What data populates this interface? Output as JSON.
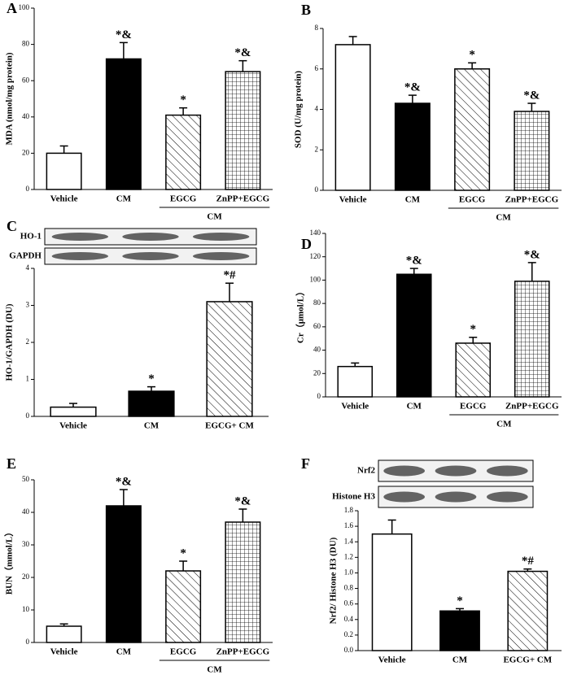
{
  "chart_data": [
    {
      "type": "bar",
      "panel": "A",
      "ylabel": "MDA (nmol/mg protein)",
      "categories": [
        "Vehicle",
        "CM",
        "EGCG",
        "ZnPP+EGCG"
      ],
      "values": [
        20,
        72,
        41,
        65
      ],
      "errors": [
        4,
        9,
        4,
        6
      ],
      "annotations": [
        null,
        "*&",
        "*",
        "*&"
      ],
      "fills": [
        "white",
        "black",
        "hatch",
        "grid"
      ],
      "group": "CM",
      "grouped": [
        false,
        false,
        true,
        true
      ],
      "ylim": [
        0,
        100
      ],
      "yticks": [
        0,
        20,
        40,
        60,
        80,
        100
      ]
    },
    {
      "type": "bar",
      "panel": "B",
      "ylabel": "SOD (U/mg protein)",
      "categories": [
        "Vehicle",
        "CM",
        "EGCG",
        "ZnPP+EGCG"
      ],
      "values": [
        7.2,
        4.3,
        6.0,
        3.9
      ],
      "errors": [
        0.4,
        0.4,
        0.3,
        0.4
      ],
      "annotations": [
        null,
        "*&",
        "*",
        "*&"
      ],
      "fills": [
        "white",
        "black",
        "hatch",
        "grid"
      ],
      "group": "CM",
      "grouped": [
        false,
        false,
        true,
        true
      ],
      "ylim": [
        0,
        8
      ],
      "yticks": [
        0,
        2,
        4,
        6,
        8
      ]
    },
    {
      "type": "bar",
      "panel": "C",
      "ylabel": "HO-1/GAPDH (DU)",
      "categories": [
        "Vehicle",
        "CM",
        "EGCG+ CM"
      ],
      "values": [
        0.25,
        0.68,
        3.1
      ],
      "errors": [
        0.1,
        0.12,
        0.5
      ],
      "annotations": [
        null,
        "*",
        "*#"
      ],
      "fills": [
        "white",
        "black",
        "hatch"
      ],
      "blot_labels": [
        "HO-1",
        "GAPDH"
      ],
      "ylim": [
        0,
        4
      ],
      "yticks": [
        0,
        1,
        2,
        3,
        4
      ]
    },
    {
      "type": "bar",
      "panel": "D",
      "ylabel": "Cr（μmol/L）",
      "categories": [
        "Vehicle",
        "CM",
        "EGCG",
        "ZnPP+EGCG"
      ],
      "values": [
        26,
        105,
        46,
        99
      ],
      "errors": [
        3,
        5,
        5,
        16
      ],
      "annotations": [
        null,
        "*&",
        "*",
        "*&"
      ],
      "fills": [
        "white",
        "black",
        "hatch",
        "grid"
      ],
      "group": "CM",
      "grouped": [
        false,
        false,
        true,
        true
      ],
      "ylim": [
        0,
        140
      ],
      "yticks": [
        0,
        20,
        40,
        60,
        80,
        100,
        120,
        140
      ]
    },
    {
      "type": "bar",
      "panel": "E",
      "ylabel": "BUN（mmol/L）",
      "categories": [
        "Vehicle",
        "CM",
        "EGCG",
        "ZnPP+EGCG"
      ],
      "values": [
        5,
        42,
        22,
        37
      ],
      "errors": [
        0.7,
        5,
        3,
        4
      ],
      "annotations": [
        null,
        "*&",
        "*",
        "*&"
      ],
      "fills": [
        "white",
        "black",
        "hatch",
        "grid"
      ],
      "group": "CM",
      "grouped": [
        false,
        false,
        true,
        true
      ],
      "ylim": [
        0,
        50
      ],
      "yticks": [
        0,
        10,
        20,
        30,
        40,
        50
      ]
    },
    {
      "type": "bar",
      "panel": "F",
      "ylabel": "Nrf2/ Histone H3 (DU)",
      "categories": [
        "Vehicle",
        "CM",
        "EGCG+ CM"
      ],
      "values": [
        1.5,
        0.51,
        1.02
      ],
      "errors": [
        0.18,
        0.03,
        0.03
      ],
      "annotations": [
        null,
        "*",
        "*#"
      ],
      "fills": [
        "white",
        "black",
        "hatch"
      ],
      "blot_labels": [
        "Nrf2",
        "Histone H3"
      ],
      "ylim": [
        0,
        1.8
      ],
      "yticks": [
        {
          "value": 0,
          "label": "0.0"
        },
        0.2,
        0.4,
        0.6,
        0.8,
        {
          "value": 1,
          "label": "1.0"
        },
        1.2,
        1.4,
        1.6,
        1.8
      ]
    }
  ]
}
